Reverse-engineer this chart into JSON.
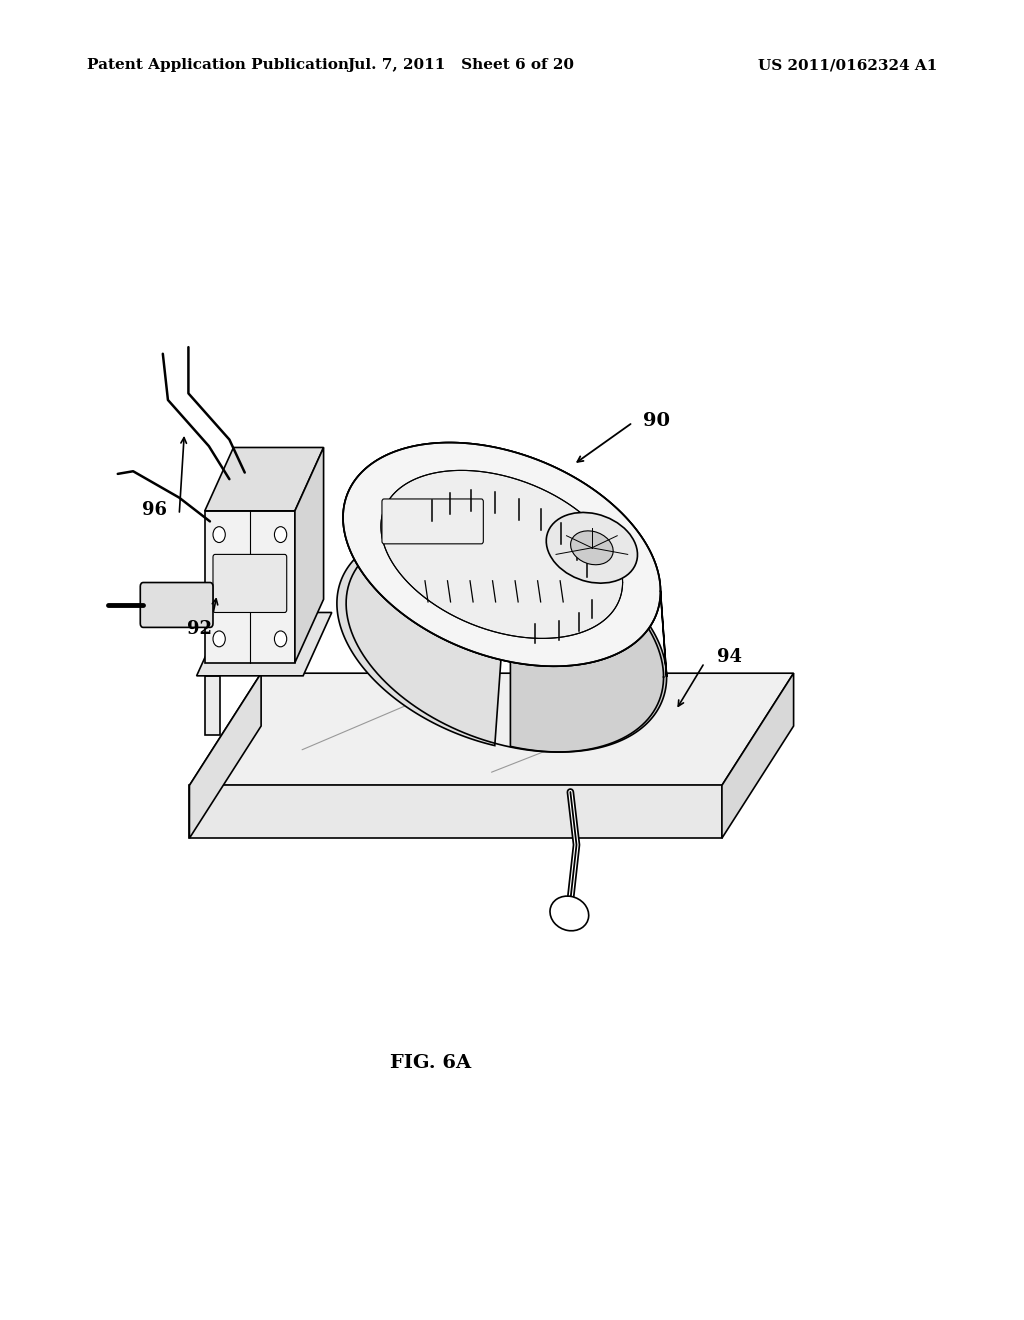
{
  "header_left": "Patent Application Publication",
  "header_mid": "Jul. 7, 2011   Sheet 6 of 20",
  "header_right": "US 2011/0162324 A1",
  "figure_label": "FIG. 6A",
  "background": "#ffffff",
  "line_color": "#000000",
  "header_fontsize": 11,
  "label_fontsize": 13,
  "fig_label_fontsize": 14
}
